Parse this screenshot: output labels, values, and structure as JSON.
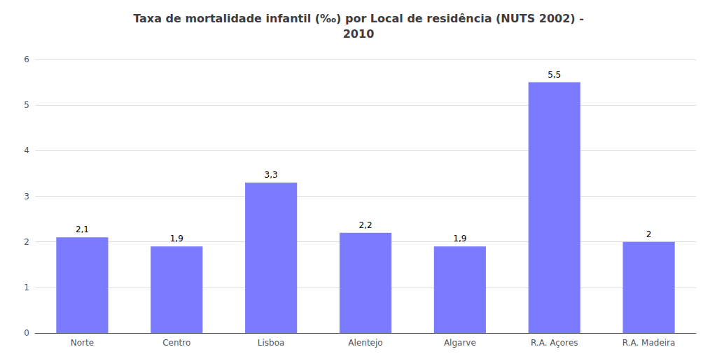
{
  "chart_data": {
    "type": "bar",
    "title": "Taxa de mortalidade infantil (‰) por Local de residência (NUTS 2002) -\n2010",
    "categories": [
      "Norte",
      "Centro",
      "Lisboa",
      "Alentejo",
      "Algarve",
      "R.A. Açores",
      "R.A. Madeira"
    ],
    "values": [
      2.1,
      1.9,
      3.3,
      2.2,
      1.9,
      5.5,
      2.0
    ],
    "value_labels": [
      "2,1",
      "1,9",
      "3,3",
      "2,2",
      "1,9",
      "5,5",
      "2"
    ],
    "data_labels": true,
    "color": "#7b7bff",
    "ylim": [
      0,
      6
    ],
    "yticks": [
      0,
      1,
      2,
      3,
      4,
      5,
      6
    ],
    "grid": true
  }
}
